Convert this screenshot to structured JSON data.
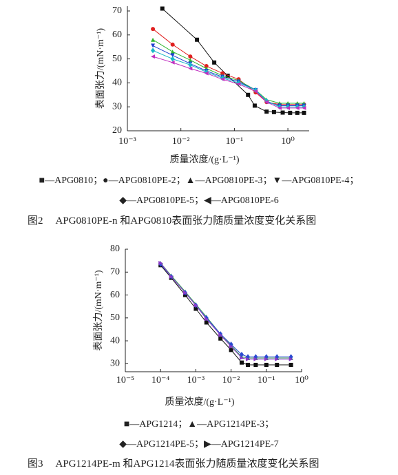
{
  "chart_data": [
    {
      "type": "line",
      "xscale": "log",
      "ylabel": "表面张力/(mN·m⁻¹)",
      "xlabel": "质量浓度/(g·L⁻¹)",
      "xlim": [
        0.001,
        2.5
      ],
      "ylim": [
        20,
        72
      ],
      "xticks": [
        {
          "value": 0.001,
          "label": "10⁻³"
        },
        {
          "value": 0.01,
          "label": "10⁻²"
        },
        {
          "value": 0.1,
          "label": "10⁻¹"
        },
        {
          "value": 1,
          "label": "10⁰"
        }
      ],
      "yticks": [
        20,
        30,
        40,
        50,
        60,
        70
      ],
      "legend_dash": "—",
      "legend_separator": "；",
      "figure_label": "图2",
      "caption": "APG0810PE-n 和APG0810表面张力随质量浓度变化关系图",
      "series": [
        {
          "name": "APG0810",
          "marker": "■",
          "color": "#111111",
          "x": [
            0.0045,
            0.02,
            0.042,
            0.075,
            0.18,
            0.24,
            0.4,
            0.55,
            0.8,
            1.1,
            1.5,
            2
          ],
          "values": [
            71,
            58,
            48.5,
            43,
            35,
            30.5,
            28,
            27.8,
            27.6,
            27.5,
            27.5,
            27.5
          ]
        },
        {
          "name": "APG0810PE-2",
          "marker": "●",
          "color": "#e02020",
          "x": [
            0.003,
            0.007,
            0.015,
            0.03,
            0.06,
            0.12,
            0.25,
            0.4,
            0.7,
            1,
            1.5,
            2
          ],
          "values": [
            62.5,
            56,
            51,
            47,
            44,
            41.5,
            36,
            32,
            31,
            31,
            31,
            31
          ]
        },
        {
          "name": "APG0810PE-3",
          "marker": "▲",
          "color": "#2fb52f",
          "x": [
            0.003,
            0.007,
            0.015,
            0.03,
            0.06,
            0.12,
            0.25,
            0.4,
            0.7,
            1,
            1.5,
            2
          ],
          "values": [
            58,
            53,
            49.5,
            46,
            43,
            41,
            37,
            33,
            31.5,
            31.5,
            31.5,
            31.5
          ]
        },
        {
          "name": "APG0810PE-4",
          "marker": "▼",
          "color": "#1f3fd0",
          "x": [
            0.003,
            0.007,
            0.015,
            0.03,
            0.06,
            0.12,
            0.25,
            0.4,
            0.7,
            1,
            1.5,
            2
          ],
          "values": [
            55.5,
            51.5,
            48,
            45,
            42.5,
            40.5,
            37,
            32,
            30.5,
            30.5,
            30.5,
            30.5
          ]
        },
        {
          "name": "APG0810PE-5",
          "marker": "◆",
          "color": "#18b8c8",
          "x": [
            0.003,
            0.007,
            0.015,
            0.03,
            0.06,
            0.12,
            0.25,
            0.4,
            0.7,
            1,
            1.5,
            2
          ],
          "values": [
            53.5,
            50,
            47.5,
            44.5,
            42,
            40,
            37,
            32.5,
            30,
            30,
            30,
            30
          ]
        },
        {
          "name": "APG0810PE-6",
          "marker": "◀",
          "color": "#c030c0",
          "x": [
            0.003,
            0.007,
            0.015,
            0.03,
            0.06,
            0.12,
            0.25,
            0.4,
            0.7,
            1,
            1.5,
            2
          ],
          "values": [
            51,
            48.5,
            46,
            44,
            41.5,
            39.5,
            36.5,
            32,
            29.5,
            29.5,
            29.5,
            29.5
          ]
        }
      ]
    },
    {
      "type": "line",
      "xscale": "log",
      "ylabel": "表面张力/(mN·m⁻¹)",
      "xlabel": "质量浓度/(g·L⁻¹)",
      "xlim": [
        1e-05,
        1
      ],
      "ylim": [
        26.5,
        80
      ],
      "xticks": [
        {
          "value": 1e-05,
          "label": "10⁻⁵"
        },
        {
          "value": 0.0001,
          "label": "10⁻⁴"
        },
        {
          "value": 0.001,
          "label": "10⁻³"
        },
        {
          "value": 0.01,
          "label": "10⁻²"
        },
        {
          "value": 0.1,
          "label": "10⁻¹"
        },
        {
          "value": 1,
          "label": "10⁰"
        }
      ],
      "yticks": [
        30,
        40,
        50,
        60,
        70,
        80
      ],
      "legend_dash": "—",
      "legend_separator": "；",
      "figure_label": "图3",
      "caption": "APG1214PE-m 和APG1214表面张力随质量浓度变化关系图",
      "series": [
        {
          "name": "APG1214",
          "marker": "■",
          "color": "#111111",
          "x": [
            0.0001,
            0.0002,
            0.0005,
            0.001,
            0.002,
            0.005,
            0.01,
            0.02,
            0.03,
            0.05,
            0.1,
            0.2,
            0.5
          ],
          "values": [
            73,
            67.5,
            60,
            54,
            48,
            41,
            36,
            30.5,
            29.5,
            29.5,
            29.5,
            29.5,
            29.5
          ]
        },
        {
          "name": "APG1214PE-3",
          "marker": "▲",
          "color": "#3a9a5a",
          "x": [
            0.0001,
            0.0002,
            0.0005,
            0.001,
            0.002,
            0.005,
            0.01,
            0.02,
            0.03,
            0.05,
            0.1,
            0.2,
            0.5
          ],
          "values": [
            74,
            68.5,
            61.5,
            56,
            50.5,
            43,
            38,
            33,
            32.5,
            32.5,
            32.5,
            32.5,
            32.5
          ]
        },
        {
          "name": "APG1214PE-5",
          "marker": "◆",
          "color": "#2a4ad0",
          "x": [
            0.0001,
            0.0002,
            0.0005,
            0.001,
            0.002,
            0.005,
            0.01,
            0.02,
            0.03,
            0.05,
            0.1,
            0.2,
            0.5
          ],
          "values": [
            73.5,
            68,
            61,
            55.5,
            50,
            43,
            38.5,
            34,
            33,
            33,
            33,
            33,
            33
          ]
        },
        {
          "name": "APG1214PE-7",
          "marker": "▶",
          "color": "#8a3ac8",
          "x": [
            0.0001,
            0.0002,
            0.0005,
            0.001,
            0.002,
            0.005,
            0.01,
            0.02,
            0.03,
            0.05,
            0.1,
            0.2,
            0.5
          ],
          "values": [
            74,
            68,
            61,
            55.5,
            49.5,
            42.5,
            37.5,
            32.5,
            32,
            32,
            32,
            32,
            32
          ]
        }
      ]
    }
  ]
}
